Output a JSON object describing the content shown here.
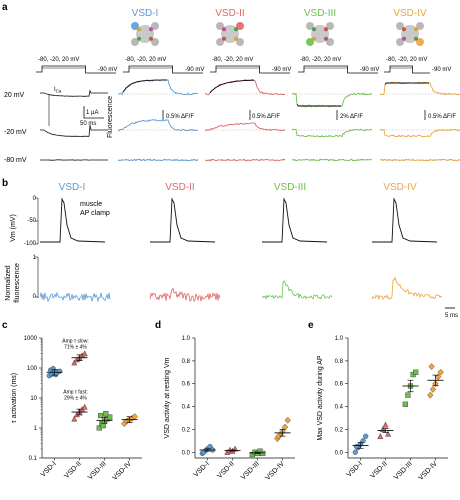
{
  "colors": {
    "vsd1": "#5b9bd5",
    "vsd2": "#e06666",
    "vsd3": "#6cc04a",
    "vsd4": "#f2a33a",
    "black": "#111111",
    "gray": "#9a9a9a"
  },
  "panel_a": {
    "letter": "a",
    "titles": [
      "VSD-I",
      "VSD-II",
      "VSD-III",
      "VSD-IV"
    ],
    "protocol_left": "-80, -20, 20 mV",
    "protocol_right": "-90 mV",
    "voltages": [
      "20 mV",
      "-20 mV",
      "-80 mV"
    ],
    "ica_label": "I",
    "ica_sub": "Ca",
    "scale_current": "1 µA",
    "scale_time": "50 ms",
    "fluorescence_label": "Fluorescence",
    "scale_df": [
      "0.5% ΔF/F",
      "0.5% ΔF/F",
      "2% ΔF/F",
      "0.5% ΔF/F"
    ]
  },
  "panel_b": {
    "letter": "b",
    "titles": [
      "VSD-I",
      "VSD-II",
      "VSD-III",
      "VSD-IV"
    ],
    "vm_label": "Vm (mV)",
    "vm_ticks": [
      "0",
      "-50",
      "-100"
    ],
    "ap_label_1": "muscle",
    "ap_label_2": "AP clamp",
    "fluor_label_1": "Normalized",
    "fluor_label_2": "fluorescence",
    "fluor_ticks": [
      "1",
      "0"
    ],
    "scale_time": "5 ms"
  },
  "chart_data": [
    {
      "type": "scatter",
      "panel": "c",
      "ylabel": "τ activation (ms)",
      "yscale": "log",
      "ylim": [
        0.1,
        1000
      ],
      "yticks": [
        "0.1",
        "1",
        "10",
        "100",
        "1000"
      ],
      "categories": [
        "VSD-I",
        "VSD-II",
        "VSD-III",
        "VSD-IV"
      ],
      "annotation_slow": [
        "Amp τ slow:",
        "71% ± 4%"
      ],
      "annotation_fast": [
        "Amp τ fast:",
        "29% ± 4%"
      ],
      "series": [
        {
          "category": "VSD-I",
          "points": [
            55,
            62,
            68,
            72,
            78,
            85,
            95,
            60
          ],
          "mean": 72
        },
        {
          "category": "VSD-II",
          "points": [
            150,
            190,
            220,
            260,
            300
          ],
          "mean": 220
        },
        {
          "category": "VSD-II",
          "points": [
            2.0,
            2.8,
            3.5,
            4.2,
            5.0
          ],
          "mean": 3.4
        },
        {
          "category": "VSD-III",
          "points": [
            1.0,
            1.4,
            1.7,
            2.0,
            2.3,
            2.6,
            1.2,
            3.0
          ],
          "mean": 1.8
        },
        {
          "category": "VSD-IV",
          "points": [
            1.4,
            1.7,
            1.9,
            2.1,
            2.4
          ],
          "mean": 1.9
        }
      ]
    },
    {
      "type": "scatter",
      "panel": "d",
      "ylabel": "VSD activity at resting Vm",
      "ylim": [
        -0.05,
        1.0
      ],
      "yticks": [
        "0.0",
        "0.2",
        "0.4",
        "0.6",
        "0.8",
        "1.0"
      ],
      "categories": [
        "VSD-I",
        "VSD-II",
        "VSD-III",
        "VSD-IV"
      ],
      "series": [
        {
          "category": "VSD-I",
          "points": [
            -0.01,
            0.01,
            0.03,
            0.05,
            0.02,
            0.0
          ],
          "mean": 0.02
        },
        {
          "category": "VSD-II",
          "points": [
            0.0,
            0.02,
            0.01,
            0.03
          ],
          "mean": 0.015
        },
        {
          "category": "VSD-III",
          "points": [
            -0.02,
            0.0,
            -0.01,
            0.01,
            -0.01
          ],
          "mean": -0.005
        },
        {
          "category": "VSD-IV",
          "points": [
            0.12,
            0.15,
            0.18,
            0.22,
            0.28,
            0.14
          ],
          "mean": 0.17
        }
      ]
    },
    {
      "type": "scatter",
      "panel": "e",
      "ylabel": "Max VSD activity during AP",
      "ylim": [
        -0.05,
        1.0
      ],
      "yticks": [
        "0.0",
        "0.2",
        "0.4",
        "0.6",
        "0.8",
        "1.0"
      ],
      "categories": [
        "VSD-I",
        "VSD-II",
        "VSD-III",
        "VSD-IV"
      ],
      "series": [
        {
          "category": "VSD-I",
          "points": [
            0.0,
            0.04,
            0.07,
            0.1,
            0.14,
            0.05
          ],
          "mean": 0.06
        },
        {
          "category": "VSD-II",
          "points": [
            0.14,
            0.2,
            0.24,
            0.16
          ],
          "mean": 0.19
        },
        {
          "category": "VSD-III",
          "points": [
            0.42,
            0.5,
            0.58,
            0.68,
            0.7
          ],
          "mean": 0.58
        },
        {
          "category": "VSD-IV",
          "points": [
            0.5,
            0.55,
            0.6,
            0.66,
            0.7,
            0.75
          ],
          "mean": 0.63
        }
      ]
    }
  ]
}
